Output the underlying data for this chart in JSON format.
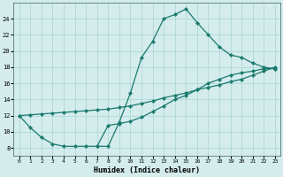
{
  "xlabel": "Humidex (Indice chaleur)",
  "background_color": "#d4ecec",
  "grid_color": "#a8d4d4",
  "line_color": "#1a7a6e",
  "xlim": [
    -0.5,
    23.5
  ],
  "ylim": [
    7,
    26
  ],
  "xticks": [
    0,
    1,
    2,
    3,
    4,
    5,
    6,
    7,
    8,
    9,
    10,
    11,
    12,
    13,
    14,
    15,
    16,
    17,
    18,
    19,
    20,
    21,
    22,
    23
  ],
  "yticks": [
    8,
    10,
    12,
    14,
    16,
    18,
    20,
    22,
    24
  ],
  "series": [
    {
      "x": [
        0,
        1,
        2,
        3,
        4,
        5,
        6,
        7,
        8,
        9,
        10,
        11,
        12,
        13,
        14,
        15,
        16,
        17,
        18,
        19,
        20,
        21,
        22,
        23
      ],
      "y": [
        12,
        10.5,
        9.3,
        8.5,
        8.2,
        8.2,
        8.2,
        8.2,
        10.8,
        11.0,
        11.3,
        11.8,
        12.5,
        13.2,
        14.0,
        14.5,
        15.2,
        16.0,
        16.5,
        17.0,
        17.3,
        17.5,
        17.8,
        17.8
      ]
    },
    {
      "x": [
        0,
        1,
        2,
        3,
        4,
        5,
        6,
        7,
        8,
        9,
        10,
        11,
        12,
        13,
        14,
        15,
        16,
        17,
        18,
        19,
        20,
        21,
        22,
        23
      ],
      "y": [
        12,
        12.1,
        12.2,
        12.3,
        12.4,
        12.5,
        12.6,
        12.7,
        12.8,
        13.0,
        13.2,
        13.5,
        13.8,
        14.2,
        14.5,
        14.8,
        15.2,
        15.5,
        15.8,
        16.2,
        16.5,
        17.0,
        17.5,
        18.0
      ]
    },
    {
      "x": [
        7,
        8,
        9,
        10,
        11,
        12,
        13,
        14,
        15,
        16,
        17,
        18,
        19,
        20,
        21,
        22,
        23
      ],
      "y": [
        8.2,
        8.2,
        11.2,
        14.8,
        19.2,
        21.2,
        24.0,
        24.5,
        25.2,
        23.5,
        22.0,
        20.5,
        19.5,
        19.2,
        18.5,
        18.0,
        17.8
      ]
    }
  ]
}
